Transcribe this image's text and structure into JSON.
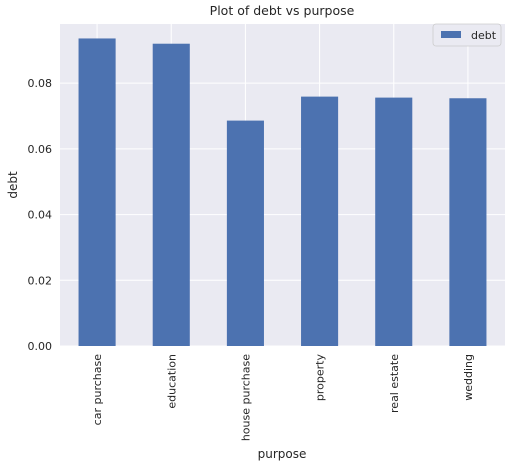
{
  "chart_data": {
    "type": "bar",
    "title": "Plot of debt vs purpose",
    "xlabel": "purpose",
    "ylabel": "debt",
    "categories": [
      "car purchase",
      "education",
      "house purchase",
      "property",
      "real estate",
      "wedding"
    ],
    "series": [
      {
        "name": "debt",
        "values": [
          0.0936,
          0.092,
          0.0686,
          0.0759,
          0.0756,
          0.0754
        ]
      }
    ],
    "ylim": [
      0,
      0.098
    ],
    "yticks": [
      0.0,
      0.02,
      0.04,
      0.06,
      0.08
    ],
    "ytick_labels": [
      "0.00",
      "0.02",
      "0.04",
      "0.06",
      "0.08"
    ],
    "grid": true,
    "legend_position": "top-right",
    "colors": {
      "bar": "#4c72b0",
      "plot_background": "#eaeaf2",
      "grid": "#ffffff"
    }
  }
}
